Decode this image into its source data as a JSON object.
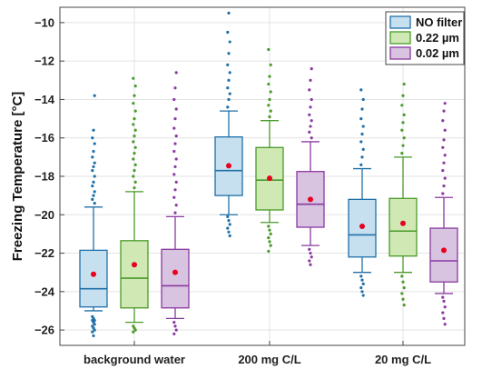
{
  "chart_data": {
    "type": "box",
    "title": "",
    "xlabel": "",
    "ylabel": "Freezing Temperature [°C]",
    "ylim": [
      -26.8,
      -9.2
    ],
    "yticks": [
      -26,
      -24,
      -22,
      -20,
      -18,
      -16,
      -14,
      -12,
      -10
    ],
    "categories": [
      "background water",
      "200 mg C/L",
      "20 mg C/L"
    ],
    "grid": true,
    "legend_position": "top-right",
    "series": [
      {
        "name": "NO filter",
        "fill": "#c6e0f0",
        "stroke": "#1f6fa8",
        "boxes": [
          {
            "whisker_low": -25.0,
            "q1": -24.8,
            "median": -23.85,
            "q3": -21.85,
            "whisker_high": -19.6,
            "mean": -23.1,
            "outliers": [
              -25.3,
              -25.4,
              -25.5,
              -25.5,
              -25.6,
              -25.7,
              -25.8,
              -25.9,
              -26.0,
              -26.1,
              -26.3,
              -19.4,
              -19.2,
              -19.0,
              -18.8,
              -18.5,
              -18.3,
              -18.0,
              -17.7,
              -17.5,
              -17.3,
              -17.0,
              -16.7,
              -16.3,
              -16.0,
              -15.6,
              -13.8
            ]
          },
          {
            "whisker_low": -20.0,
            "q1": -19.0,
            "median": -17.7,
            "q3": -15.95,
            "whisker_high": -14.6,
            "mean": -17.45,
            "outliers": [
              -20.1,
              -20.3,
              -20.5,
              -20.7,
              -20.9,
              -21.1,
              -14.4,
              -14.0,
              -13.7,
              -13.4,
              -13.0,
              -12.6,
              -12.2,
              -11.6,
              -11.0,
              -10.5,
              -9.5
            ]
          },
          {
            "whisker_low": -23.0,
            "q1": -22.2,
            "median": -21.05,
            "q3": -19.2,
            "whisker_high": -17.6,
            "mean": -20.6,
            "outliers": [
              -23.2,
              -23.4,
              -23.6,
              -23.8,
              -24.0,
              -24.2,
              -17.4,
              -17.0,
              -16.6,
              -16.2,
              -15.8,
              -15.4,
              -15.0,
              -14.5,
              -14.0,
              -13.5
            ]
          }
        ]
      },
      {
        "name": "0.22 µm",
        "fill": "#cfe8b4",
        "stroke": "#4a9a2a",
        "boxes": [
          {
            "whisker_low": -25.6,
            "q1": -24.85,
            "median": -23.3,
            "q3": -21.35,
            "whisker_high": -18.8,
            "mean": -22.6,
            "outliers": [
              -25.8,
              -25.9,
              -26.0,
              -26.1,
              -18.6,
              -18.3,
              -18.0,
              -17.7,
              -17.4,
              -17.1,
              -16.8,
              -16.5,
              -16.2,
              -15.9,
              -15.6,
              -15.3,
              -15.0,
              -14.6,
              -14.2,
              -13.8,
              -13.3,
              -12.9
            ]
          },
          {
            "whisker_low": -20.4,
            "q1": -19.75,
            "median": -18.2,
            "q3": -16.5,
            "whisker_high": -15.1,
            "mean": -18.1,
            "outliers": [
              -20.6,
              -20.8,
              -21.0,
              -21.2,
              -21.4,
              -21.6,
              -21.9,
              -14.9,
              -14.6,
              -14.3,
              -14.0,
              -13.6,
              -13.2,
              -12.8,
              -12.2,
              -11.4
            ]
          },
          {
            "whisker_low": -23.0,
            "q1": -22.15,
            "median": -20.85,
            "q3": -19.15,
            "whisker_high": -17.0,
            "mean": -20.45,
            "outliers": [
              -23.2,
              -23.5,
              -23.8,
              -24.1,
              -24.4,
              -24.7,
              -16.8,
              -16.4,
              -16.0,
              -15.6,
              -15.2,
              -14.8,
              -14.3,
              -13.8,
              -13.2
            ]
          }
        ]
      },
      {
        "name": "0.02 µm",
        "fill": "#d8c3e0",
        "stroke": "#8a3aa0",
        "boxes": [
          {
            "whisker_low": -25.4,
            "q1": -24.85,
            "median": -23.7,
            "q3": -21.8,
            "whisker_high": -20.1,
            "mean": -23.0,
            "outliers": [
              -25.6,
              -25.8,
              -26.0,
              -26.2,
              -19.9,
              -19.5,
              -19.1,
              -18.7,
              -18.3,
              -17.9,
              -17.5,
              -17.1,
              -16.7,
              -16.3,
              -15.9,
              -15.5,
              -15.0,
              -14.5,
              -14.0,
              -13.4,
              -12.6
            ]
          },
          {
            "whisker_low": -21.6,
            "q1": -20.65,
            "median": -19.45,
            "q3": -17.75,
            "whisker_high": -16.2,
            "mean": -19.2,
            "outliers": [
              -21.8,
              -22.0,
              -22.2,
              -22.4,
              -22.6,
              -16.0,
              -15.7,
              -15.4,
              -15.1,
              -14.8,
              -14.4,
              -14.0,
              -13.5,
              -13.0,
              -12.4
            ]
          },
          {
            "whisker_low": -24.1,
            "q1": -23.5,
            "median": -22.4,
            "q3": -20.7,
            "whisker_high": -19.1,
            "mean": -21.85,
            "outliers": [
              -24.3,
              -24.5,
              -24.8,
              -25.1,
              -25.4,
              -25.7,
              -18.9,
              -18.5,
              -18.1,
              -17.7,
              -17.3,
              -16.9,
              -16.5,
              -16.1,
              -15.6,
              -15.1,
              -14.6,
              -14.2
            ]
          }
        ]
      }
    ]
  }
}
